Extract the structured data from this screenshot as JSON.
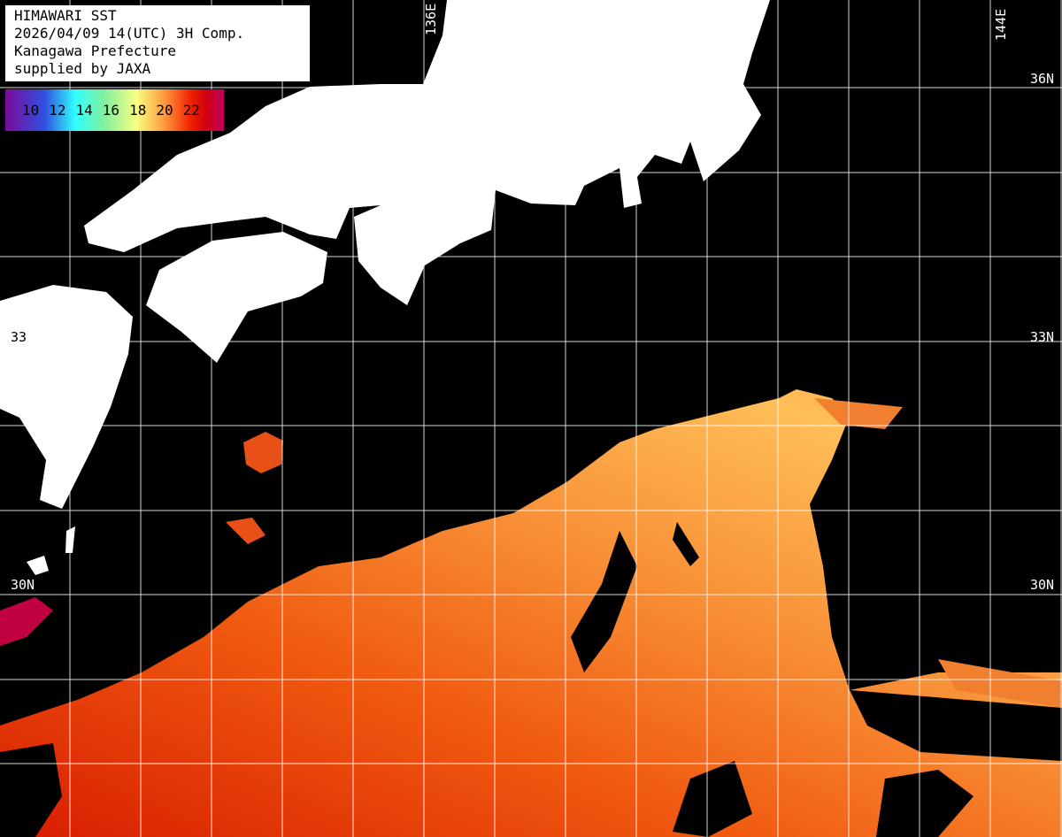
{
  "title_box": {
    "line1": "HIMAWARI SST",
    "line2": "2026/04/09 14(UTC) 3H Comp.",
    "line3": "Kanagawa Prefecture",
    "line4": "supplied by JAXA"
  },
  "legend": {
    "ticks": [
      "10",
      "12",
      "14",
      "16",
      "18",
      "20",
      "22"
    ],
    "colors": [
      "#7a0a9a",
      "#3050e0",
      "#30ffff",
      "#80f0a0",
      "#f8ff80",
      "#ffa040",
      "#f02000",
      "#c00060"
    ]
  },
  "grid_labels": {
    "lon_136": "136E",
    "lon_144": "144E",
    "lat_36_right": "36N",
    "lat_33_left": "33",
    "lat_33_right": "33N",
    "lat_30_left": "30N",
    "lat_30_right": "30N"
  },
  "colors": {
    "land": "#ffffff",
    "no_data": "#000000",
    "grid": "#ffffff",
    "sst_warm": "#d82000",
    "sst_mid": "#f07020",
    "sst_cool": "#ffc060"
  }
}
